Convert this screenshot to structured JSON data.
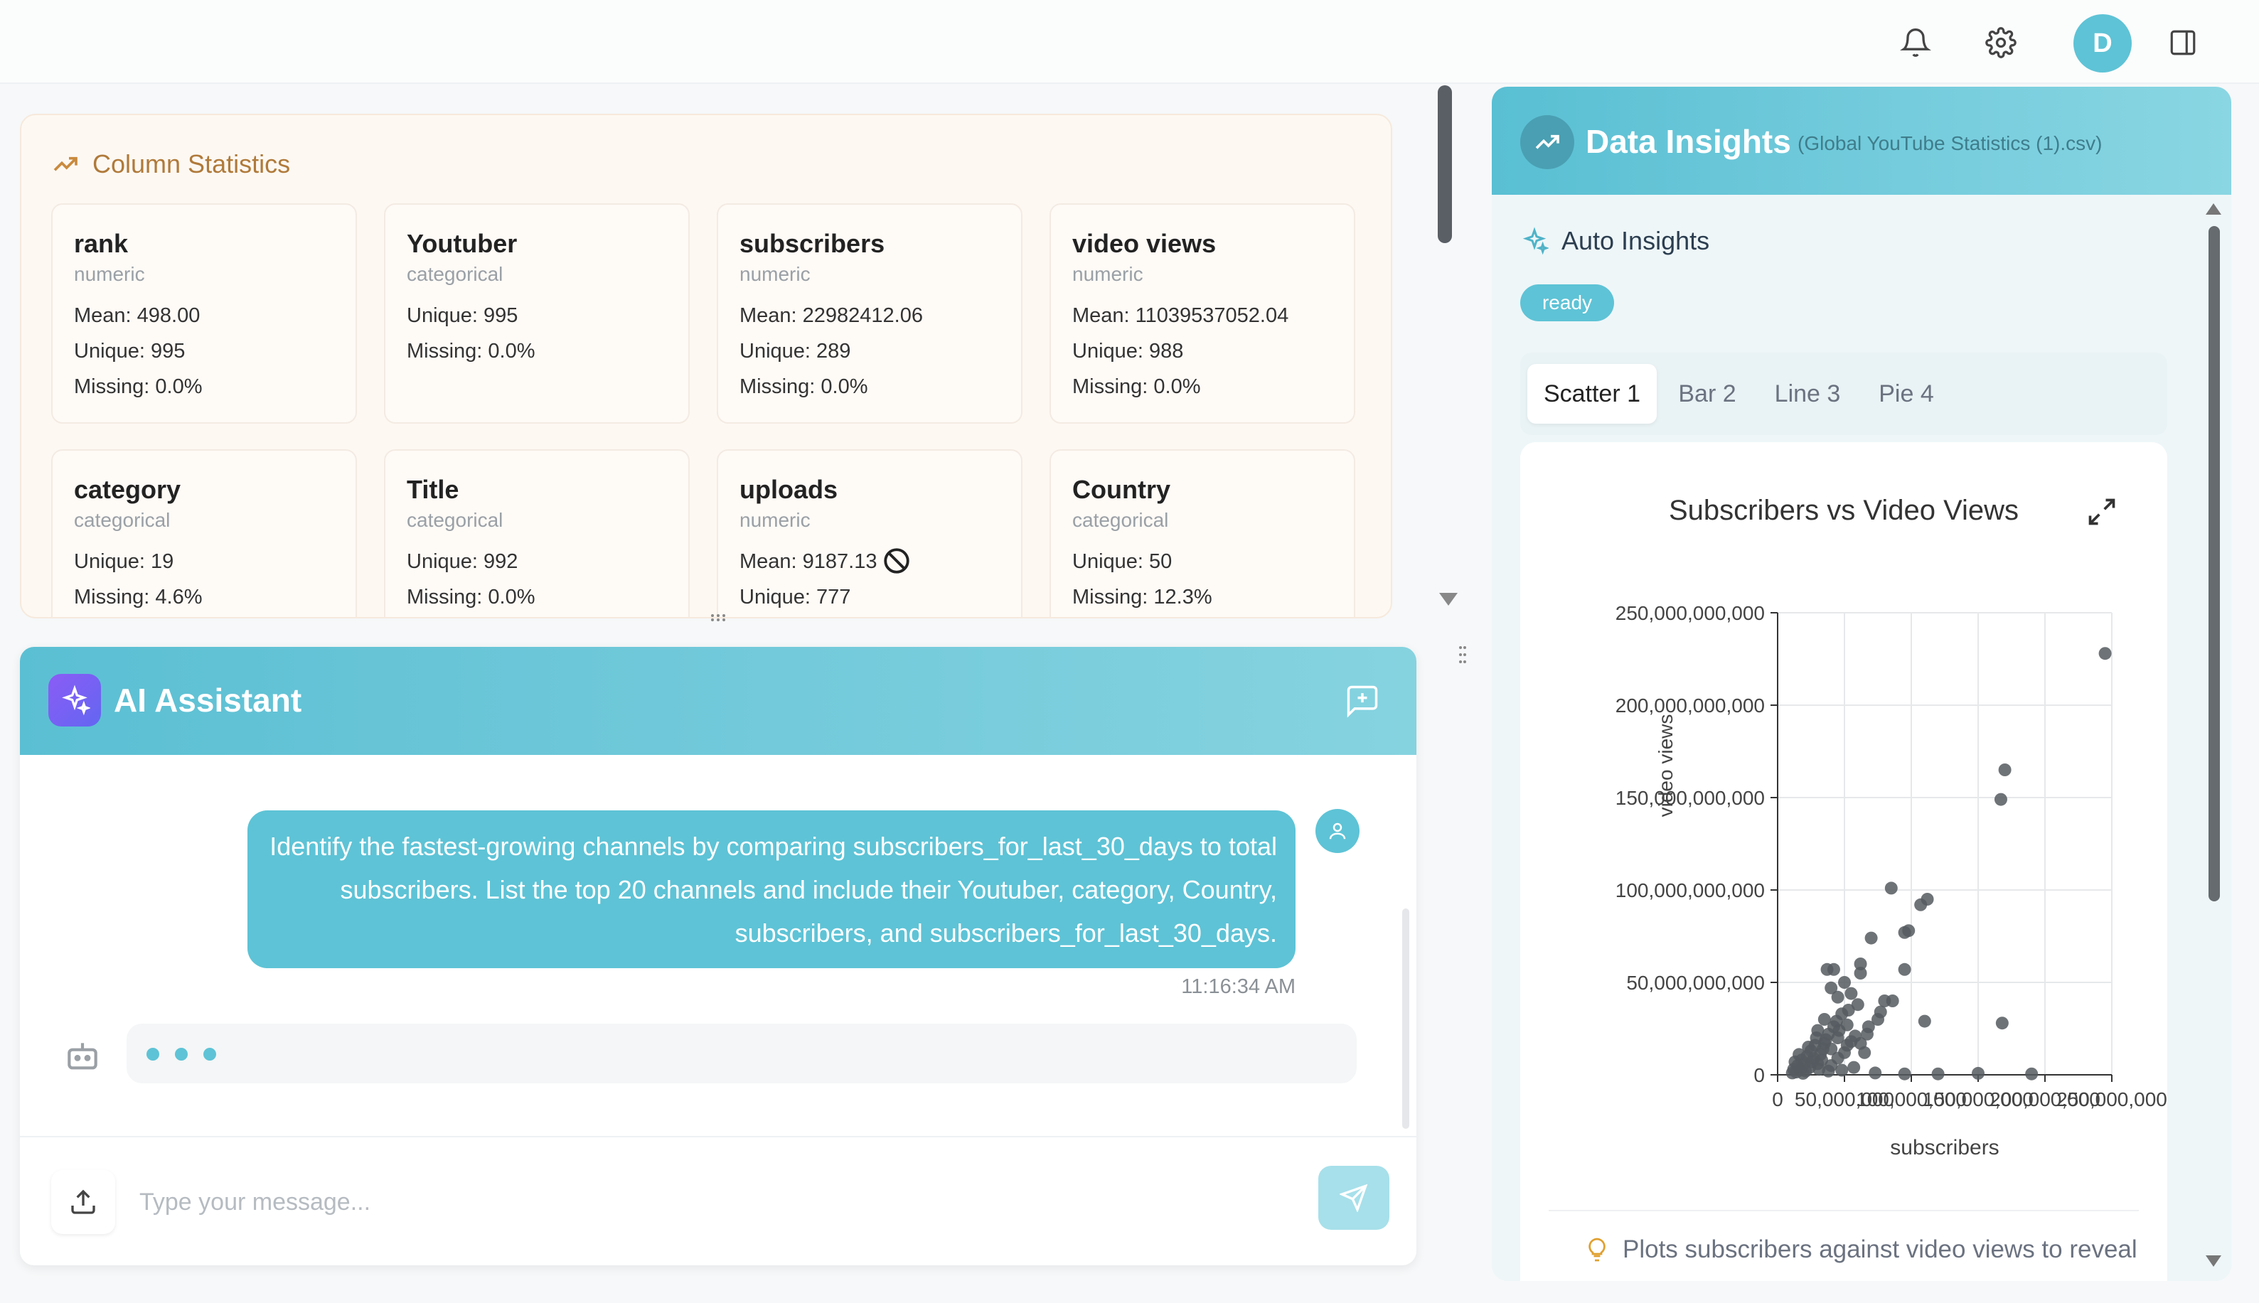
{
  "topbar": {
    "avatar_letter": "D",
    "icons": [
      "bell-icon",
      "gear-icon",
      "panel-toggle-icon"
    ]
  },
  "column_statistics": {
    "title": "Column Statistics",
    "columns": [
      {
        "name": "rank",
        "type": "numeric",
        "lines": [
          "Mean: 498.00",
          "Unique: 995",
          "Missing: 0.0%"
        ]
      },
      {
        "name": "Youtuber",
        "type": "categorical",
        "lines": [
          "Unique: 995",
          "Missing: 0.0%"
        ]
      },
      {
        "name": "subscribers",
        "type": "numeric",
        "lines": [
          "Mean: 22982412.06",
          "Unique: 289",
          "Missing: 0.0%"
        ]
      },
      {
        "name": "video views",
        "type": "numeric",
        "lines": [
          "Mean: 11039537052.04",
          "Unique: 988",
          "Missing: 0.0%"
        ]
      },
      {
        "name": "category",
        "type": "categorical",
        "lines": [
          "Unique: 19",
          "Missing: 4.6%"
        ]
      },
      {
        "name": "Title",
        "type": "categorical",
        "lines": [
          "Unique: 992",
          "Missing: 0.0%"
        ]
      },
      {
        "name": "uploads",
        "type": "numeric",
        "lines": [
          "Mean: 9187.13",
          "Unique: 777"
        ]
      },
      {
        "name": "Country",
        "type": "categorical",
        "lines": [
          "Unique: 50",
          "Missing: 12.3%"
        ]
      }
    ]
  },
  "ai_assistant": {
    "title": "AI Assistant",
    "user_message": "Identify the fastest-growing channels by comparing subscribers_for_last_30_days to total subscribers. List the top 20 channels and include their Youtuber, category, Country, subscribers, and subscribers_for_last_30_days.",
    "message_time": "11:16:34 AM",
    "input_placeholder": "Type your message..."
  },
  "data_insights": {
    "title": "Data Insights",
    "file_name": "(Global YouTube Statistics (1).csv)",
    "auto_insights_label": "Auto Insights",
    "status": "ready",
    "tabs": [
      "Scatter 1",
      "Bar 2",
      "Line 3",
      "Pie 4"
    ],
    "active_tab": 0,
    "note": "Plots subscribers against video views to reveal"
  },
  "colors": {
    "accent": "#5ec3d6",
    "stats_bg": "#fdf8f2",
    "point": "#555a5f"
  },
  "chart_data": {
    "type": "scatter",
    "title": "Subscribers vs Video Views",
    "xlabel": "subscribers",
    "ylabel": "video views",
    "xlim": [
      0,
      250000000
    ],
    "ylim": [
      0,
      250000000000
    ],
    "x_ticks": [
      0,
      50000000,
      100000000,
      150000000,
      200000000,
      250000000
    ],
    "x_tick_labels": [
      "0",
      "50,000,000",
      "100,000,000",
      "150,000,000",
      "200,000,000",
      "250,000,000"
    ],
    "y_ticks": [
      0,
      50000000000,
      100000000000,
      150000000000,
      200000000000,
      250000000000
    ],
    "y_tick_labels": [
      "0",
      "50,000,000,000",
      "100,000,000,000",
      "150,000,000,000",
      "200,000,000,000",
      "250,000,000,000"
    ],
    "grid": true,
    "points": [
      [
        245000000,
        228000000000
      ],
      [
        170000000,
        165000000000
      ],
      [
        167000000,
        149000000000
      ],
      [
        85000000,
        101000000000
      ],
      [
        112000000,
        95000000000
      ],
      [
        107000000,
        92000000000
      ],
      [
        98000000,
        78000000000
      ],
      [
        95000000,
        77000000000
      ],
      [
        70000000,
        74000000000
      ],
      [
        62000000,
        60000000000
      ],
      [
        95000000,
        57000000000
      ],
      [
        37000000,
        57000000000
      ],
      [
        42000000,
        57000000000
      ],
      [
        62000000,
        55000000000
      ],
      [
        50000000,
        50000000000
      ],
      [
        40000000,
        47000000000
      ],
      [
        55000000,
        44000000000
      ],
      [
        45000000,
        42000000000
      ],
      [
        80000000,
        40000000000
      ],
      [
        75000000,
        30000000000
      ],
      [
        110000000,
        29000000000
      ],
      [
        168000000,
        28000000000
      ],
      [
        60000000,
        38000000000
      ],
      [
        48000000,
        33000000000
      ],
      [
        35000000,
        30000000000
      ],
      [
        52000000,
        27000000000
      ],
      [
        42000000,
        26000000000
      ],
      [
        30000000,
        24000000000
      ],
      [
        38000000,
        22000000000
      ],
      [
        45000000,
        20000000000
      ],
      [
        55000000,
        18000000000
      ],
      [
        62000000,
        17000000000
      ],
      [
        35000000,
        17000000000
      ],
      [
        28000000,
        16000000000
      ],
      [
        40000000,
        14000000000
      ],
      [
        50000000,
        12000000000
      ],
      [
        25000000,
        13000000000
      ],
      [
        32000000,
        11000000000
      ],
      [
        22000000,
        10000000000
      ],
      [
        27000000,
        9000000000
      ],
      [
        18000000,
        8000000000
      ],
      [
        20000000,
        6000000000
      ],
      [
        15000000,
        5000000000
      ],
      [
        24000000,
        4000000000
      ],
      [
        30000000,
        6000000000
      ],
      [
        12000000,
        3000000000
      ],
      [
        17000000,
        2500000000
      ],
      [
        21000000,
        2000000000
      ],
      [
        14000000,
        1500000000
      ],
      [
        11000000,
        1000000000
      ],
      [
        19000000,
        800000000
      ],
      [
        26000000,
        7000000000
      ],
      [
        33000000,
        8000000000
      ],
      [
        45000000,
        9000000000
      ],
      [
        40000000,
        5000000000
      ],
      [
        65000000,
        12000000000
      ],
      [
        58000000,
        21000000000
      ],
      [
        46000000,
        24000000000
      ],
      [
        36000000,
        19000000000
      ],
      [
        29000000,
        20000000000
      ],
      [
        23000000,
        15000000000
      ],
      [
        16000000,
        11000000000
      ],
      [
        13000000,
        7000000000
      ],
      [
        34000000,
        14000000000
      ],
      [
        52000000,
        16000000000
      ],
      [
        67000000,
        22000000000
      ],
      [
        73000000,
        1000000000
      ],
      [
        95000000,
        500000000
      ],
      [
        120000000,
        500000000
      ],
      [
        150000000,
        800000000
      ],
      [
        190000000,
        500000000
      ],
      [
        31000000,
        3000000000
      ],
      [
        38000000,
        2000000000
      ],
      [
        48000000,
        2500000000
      ],
      [
        57000000,
        4000000000
      ],
      [
        44000000,
        29000000000
      ],
      [
        53000000,
        35000000000
      ],
      [
        68000000,
        26000000000
      ],
      [
        77000000,
        34000000000
      ],
      [
        86000000,
        40000000000
      ]
    ]
  }
}
